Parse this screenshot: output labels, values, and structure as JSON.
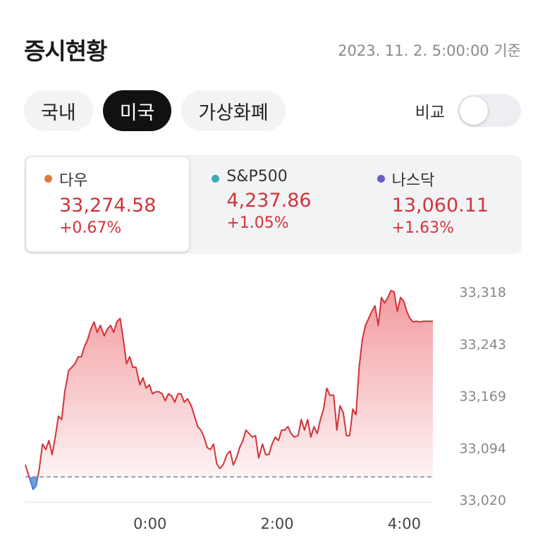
{
  "header": {
    "title": "증시현황",
    "timestamp": "2023. 11. 2. 5:00:00 기준"
  },
  "tabs": [
    {
      "label": "국내",
      "active": false
    },
    {
      "label": "미국",
      "active": true
    },
    {
      "label": "가상화폐",
      "active": false
    }
  ],
  "compare": {
    "label": "비교",
    "enabled": false
  },
  "indices": [
    {
      "name": "다우",
      "value": "33,274.58",
      "change": "+0.67%",
      "color": "#e07a3a",
      "selected": true
    },
    {
      "name": "S&P500",
      "value": "4,237.86",
      "change": "+1.05%",
      "color": "#43a7b0",
      "selected": false
    },
    {
      "name": "나스닥",
      "value": "13,060.11",
      "change": "+1.63%",
      "color": "#6a5fc9",
      "selected": false
    }
  ],
  "colors": {
    "up": "#d2333a",
    "down": "#4a7fd4",
    "baseline": "#8a7a9a"
  },
  "chart_data": {
    "type": "area",
    "series_name": "다우",
    "y_ticks": [
      "33,318",
      "33,243",
      "33,169",
      "33,094",
      "33,020"
    ],
    "ylim": [
      33020,
      33318
    ],
    "x_ticks": [
      {
        "label": "0:00",
        "x": 0
      },
      {
        "label": "2:00",
        "x": 2
      },
      {
        "label": "4:00",
        "x": 4
      }
    ],
    "xlim": [
      -1.96,
      4.45
    ],
    "baseline": 33053,
    "grid": false,
    "x": [
      -1.96,
      -1.89,
      -1.84,
      -1.79,
      -1.74,
      -1.69,
      -1.64,
      -1.59,
      -1.54,
      -1.49,
      -1.44,
      -1.39,
      -1.34,
      -1.28,
      -1.23,
      -1.18,
      -1.13,
      -1.08,
      -1.03,
      -0.98,
      -0.93,
      -0.88,
      -0.83,
      -0.78,
      -0.72,
      -0.67,
      -0.62,
      -0.57,
      -0.52,
      -0.47,
      -0.42,
      -0.37,
      -0.32,
      -0.27,
      -0.22,
      -0.16,
      -0.11,
      -0.06,
      -0.01,
      0.04,
      0.09,
      0.14,
      0.19,
      0.24,
      0.29,
      0.34,
      0.39,
      0.44,
      0.49,
      0.54,
      0.59,
      0.65,
      0.7,
      0.75,
      0.8,
      0.85,
      0.9,
      0.95,
      1.0,
      1.05,
      1.1,
      1.15,
      1.21,
      1.26,
      1.31,
      1.36,
      1.41,
      1.46,
      1.51,
      1.56,
      1.61,
      1.66,
      1.71,
      1.77,
      1.82,
      1.87,
      1.92,
      1.97,
      2.02,
      2.07,
      2.12,
      2.17,
      2.22,
      2.27,
      2.33,
      2.38,
      2.43,
      2.48,
      2.53,
      2.58,
      2.63,
      2.68,
      2.73,
      2.78,
      2.83,
      2.89,
      2.94,
      2.99,
      3.04,
      3.09,
      3.14,
      3.19,
      3.24,
      3.29,
      3.34,
      3.39,
      3.44,
      3.49,
      3.54,
      3.59,
      3.64,
      3.69,
      3.74,
      3.79,
      3.84,
      3.89,
      3.94,
      3.99,
      4.04,
      4.09,
      4.14,
      4.19,
      4.25,
      4.3,
      4.35,
      4.4,
      4.45
    ],
    "y": [
      33070,
      33050,
      33035,
      33040,
      33065,
      33100,
      33092,
      33105,
      33085,
      33110,
      33140,
      33135,
      33175,
      33205,
      33210,
      33215,
      33225,
      33225,
      33240,
      33250,
      33265,
      33275,
      33260,
      33270,
      33255,
      33265,
      33270,
      33260,
      33275,
      33280,
      33250,
      33215,
      33225,
      33210,
      33210,
      33185,
      33195,
      33180,
      33185,
      33172,
      33175,
      33175,
      33172,
      33162,
      33172,
      33169,
      33160,
      33172,
      33172,
      33160,
      33165,
      33155,
      33140,
      33125,
      33120,
      33110,
      33095,
      33092,
      33100,
      33072,
      33065,
      33070,
      33085,
      33090,
      33070,
      33080,
      33095,
      33105,
      33120,
      33115,
      33110,
      33112,
      33080,
      33100,
      33085,
      33085,
      33100,
      33110,
      33105,
      33120,
      33120,
      33125,
      33115,
      33110,
      33112,
      33135,
      33120,
      33135,
      33110,
      33125,
      33115,
      33135,
      33150,
      33180,
      33170,
      33170,
      33120,
      33155,
      33145,
      33112,
      33112,
      33150,
      33142,
      33210,
      33250,
      33270,
      33280,
      33290,
      33298,
      33270,
      33310,
      33302,
      33310,
      33320,
      33318,
      33290,
      33310,
      33305,
      33290,
      33280,
      33275,
      33276,
      33275,
      33276,
      33276,
      33276,
      33276
    ]
  }
}
